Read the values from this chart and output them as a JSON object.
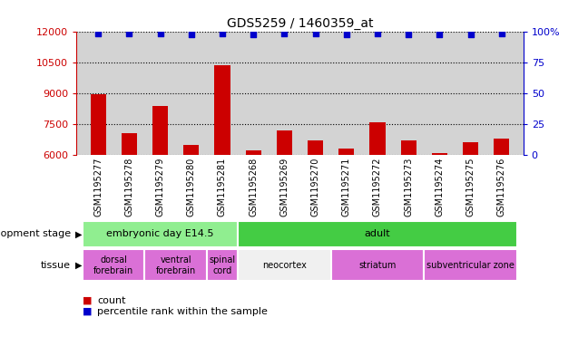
{
  "title": "GDS5259 / 1460359_at",
  "samples": [
    "GSM1195277",
    "GSM1195278",
    "GSM1195279",
    "GSM1195280",
    "GSM1195281",
    "GSM1195268",
    "GSM1195269",
    "GSM1195270",
    "GSM1195271",
    "GSM1195272",
    "GSM1195273",
    "GSM1195274",
    "GSM1195275",
    "GSM1195276"
  ],
  "counts": [
    8950,
    7050,
    8400,
    6500,
    10400,
    6200,
    7200,
    6700,
    6300,
    7600,
    6700,
    6100,
    6600,
    6800
  ],
  "percentile_ranks": [
    99,
    99,
    99,
    98,
    99,
    98,
    99,
    99,
    98,
    99,
    98,
    98,
    98,
    99
  ],
  "ylim_left": [
    6000,
    12000
  ],
  "yticks_left": [
    6000,
    7500,
    9000,
    10500,
    12000
  ],
  "ylim_right": [
    0,
    100
  ],
  "yticks_right": [
    0,
    25,
    50,
    75,
    100
  ],
  "bar_color": "#cc0000",
  "dot_color": "#0000cc",
  "bar_width": 0.5,
  "bg_color": "#d3d3d3",
  "development_stage_groups": [
    {
      "label": "embryonic day E14.5",
      "start": 0,
      "end": 4,
      "color": "#90ee90"
    },
    {
      "label": "adult",
      "start": 5,
      "end": 13,
      "color": "#44cc44"
    }
  ],
  "tissue_groups": [
    {
      "label": "dorsal\nforebrain",
      "start": 0,
      "end": 1,
      "color": "#da70d6"
    },
    {
      "label": "ventral\nforebrain",
      "start": 2,
      "end": 3,
      "color": "#da70d6"
    },
    {
      "label": "spinal\ncord",
      "start": 4,
      "end": 4,
      "color": "#da70d6"
    },
    {
      "label": "neocortex",
      "start": 5,
      "end": 7,
      "color": "#f0f0f0"
    },
    {
      "label": "striatum",
      "start": 8,
      "end": 10,
      "color": "#da70d6"
    },
    {
      "label": "subventricular zone",
      "start": 11,
      "end": 13,
      "color": "#da70d6"
    }
  ],
  "legend_count_label": "count",
  "legend_percentile_label": "percentile rank within the sample",
  "dev_stage_label": "development stage",
  "tissue_label": "tissue",
  "left_axis_color": "#cc0000",
  "right_axis_color": "#0000cc",
  "ytick_right_labels": [
    "0",
    "25",
    "50",
    "75",
    "100%"
  ]
}
